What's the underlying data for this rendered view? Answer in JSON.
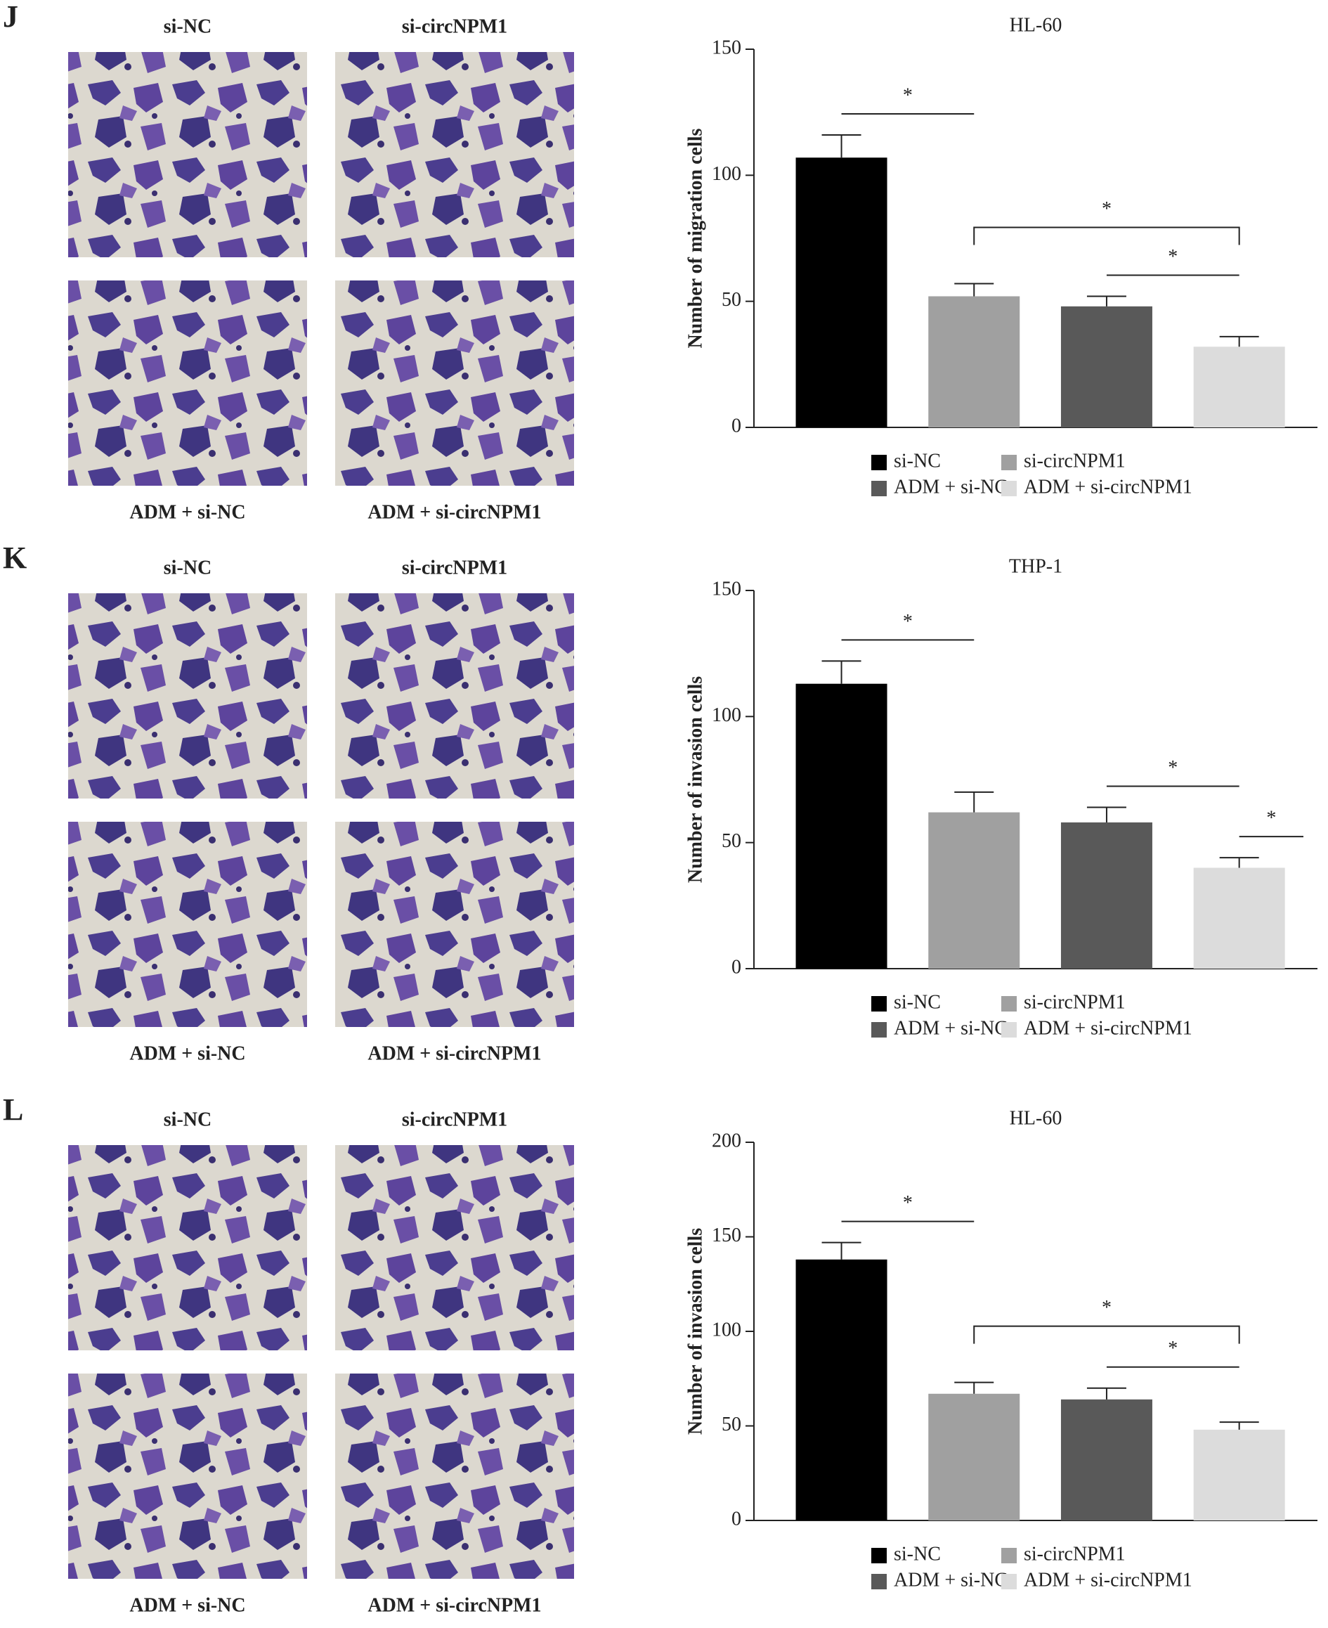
{
  "panels": [
    {
      "letter": "J",
      "images": [
        "si-NC",
        "si-circNPM1",
        "ADM + si-NC",
        "ADM + si-circNPM1"
      ]
    },
    {
      "letter": "K",
      "images": [
        "si-NC",
        "si-circNPM1",
        "ADM + si-NC",
        "ADM + si-circNPM1"
      ]
    },
    {
      "letter": "L",
      "images": [
        "si-NC",
        "si-circNPM1",
        "ADM + si-NC",
        "ADM + si-circNPM1"
      ]
    }
  ],
  "chart_data": [
    {
      "type": "bar",
      "title": "HL-60",
      "ylabel": "Number of migration cells",
      "categories": [
        "si-NC",
        "si-circNPM1",
        "ADM + si-NC",
        "ADM + si-circNPM1"
      ],
      "values": [
        107,
        52,
        48,
        32
      ],
      "errors": [
        9,
        5,
        4,
        4
      ],
      "colors": [
        "#000000",
        "#a0a0a0",
        "#595959",
        "#dcdcdc"
      ],
      "ylim": [
        0,
        150
      ],
      "yticks": [
        0,
        50,
        100,
        150
      ],
      "significance": [
        {
          "from": 0,
          "to": 1,
          "label": "*"
        },
        {
          "from": 1,
          "to": 3,
          "label": "*"
        },
        {
          "from": 2,
          "to": 3,
          "label": "*"
        }
      ]
    },
    {
      "type": "bar",
      "title": "THP-1",
      "ylabel": "Number of invasion cells",
      "categories": [
        "si-NC",
        "si-circNPM1",
        "ADM + si-NC",
        "ADM + si-circNPM1"
      ],
      "values": [
        113,
        62,
        58,
        40
      ],
      "errors": [
        9,
        8,
        6,
        4
      ],
      "colors": [
        "#000000",
        "#a0a0a0",
        "#595959",
        "#dcdcdc"
      ],
      "ylim": [
        0,
        150
      ],
      "yticks": [
        0,
        50,
        100,
        150
      ],
      "significance": [
        {
          "from": 0,
          "to": 1,
          "label": "*"
        },
        {
          "from": 2,
          "to": 3,
          "label": "*"
        },
        {
          "from": 3,
          "to": 3,
          "label": "*"
        }
      ]
    },
    {
      "type": "bar",
      "title": "HL-60",
      "ylabel": "Number of invasion cells",
      "categories": [
        "si-NC",
        "si-circNPM1",
        "ADM + si-NC",
        "ADM + si-circNPM1"
      ],
      "values": [
        138,
        67,
        64,
        48
      ],
      "errors": [
        9,
        6,
        6,
        4
      ],
      "colors": [
        "#000000",
        "#a0a0a0",
        "#595959",
        "#dcdcdc"
      ],
      "ylim": [
        0,
        200
      ],
      "yticks": [
        0,
        50,
        100,
        150,
        200
      ],
      "significance": [
        {
          "from": 0,
          "to": 1,
          "label": "*"
        },
        {
          "from": 1,
          "to": 3,
          "label": "*"
        },
        {
          "from": 2,
          "to": 3,
          "label": "*"
        }
      ]
    }
  ]
}
